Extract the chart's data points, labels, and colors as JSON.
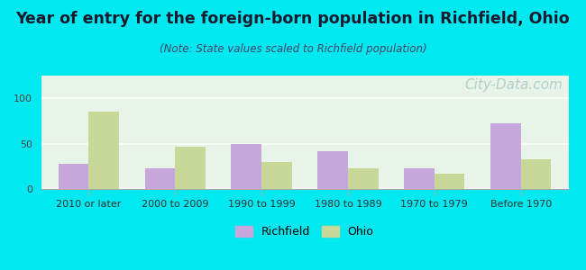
{
  "title": "Year of entry for the foreign-born population in Richfield, Ohio",
  "subtitle": "(Note: State values scaled to Richfield population)",
  "categories": [
    "2010 or later",
    "2000 to 2009",
    "1990 to 1999",
    "1980 to 1989",
    "1970 to 1979",
    "Before 1970"
  ],
  "richfield_values": [
    28,
    23,
    50,
    42,
    23,
    72
  ],
  "ohio_values": [
    85,
    47,
    30,
    23,
    17,
    33
  ],
  "richfield_color": "#c8a8dc",
  "ohio_color": "#c8d898",
  "background_outer": "#00e8f0",
  "background_inner_top": "#e8f8e8",
  "background_inner_bottom": "#d8f0d8",
  "ylim": [
    0,
    125
  ],
  "yticks": [
    0,
    50,
    100
  ],
  "bar_width": 0.35,
  "title_fontsize": 12.5,
  "subtitle_fontsize": 8.5,
  "legend_fontsize": 9,
  "tick_fontsize": 8,
  "watermark_text": "City-Data.com",
  "watermark_color": "#a8c8c8",
  "watermark_fontsize": 11
}
